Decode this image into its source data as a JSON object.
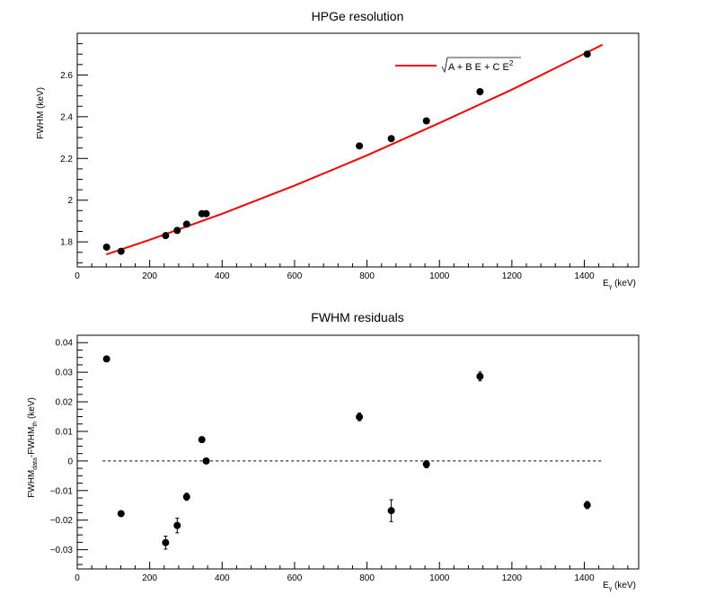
{
  "chart_data": [
    {
      "type": "scatter",
      "title": "HPGe resolution",
      "xlabel": "E",
      "xlabel_sub": "γ",
      "xlabel_unit": " (keV)",
      "ylabel": "FWHM (keV)",
      "xlim": [
        0,
        1550
      ],
      "ylim": [
        1.68,
        2.8
      ],
      "x_ticks": [
        0,
        200,
        400,
        600,
        800,
        1000,
        1200,
        1400
      ],
      "x_tick_labels": [
        "0",
        "200",
        "400",
        "600",
        "800",
        "1000",
        "1200",
        "1400"
      ],
      "y_ticks": [
        1.8,
        2.0,
        2.2,
        2.4,
        2.6
      ],
      "y_tick_labels": [
        "1.8",
        "2",
        "2.2",
        "2.4",
        "2.6"
      ],
      "legend": {
        "label": "A + B E + C E",
        "superscript": "2",
        "placement": "top-right"
      },
      "series": [
        {
          "kind": "points",
          "color": "#000000",
          "x": [
            81,
            121,
            244,
            276,
            302,
            344,
            356,
            779,
            867,
            964,
            1112,
            1408
          ],
          "y": [
            1.775,
            1.755,
            1.83,
            1.855,
            1.885,
            1.935,
            1.935,
            2.26,
            2.295,
            2.38,
            2.52,
            2.7
          ]
        },
        {
          "kind": "fit",
          "color": "#ff0000",
          "x": [
            80,
            200,
            400,
            600,
            800,
            1000,
            1200,
            1450
          ],
          "y": [
            1.74,
            1.81,
            1.935,
            2.07,
            2.215,
            2.37,
            2.53,
            2.745
          ]
        }
      ]
    },
    {
      "type": "scatter",
      "title": "FWHM residuals",
      "xlabel": "E",
      "xlabel_sub": "γ",
      "xlabel_unit": " (keV)",
      "ylabel": "FWHM",
      "ylabel_sub1": "data",
      "ylabel_mid": "-FWHM",
      "ylabel_sub2": "th",
      "ylabel_unit": " (keV)",
      "xlim": [
        0,
        1550
      ],
      "ylim": [
        -0.0365,
        0.0425
      ],
      "x_ticks": [
        0,
        200,
        400,
        600,
        800,
        1000,
        1200,
        1400
      ],
      "x_tick_labels": [
        "0",
        "200",
        "400",
        "600",
        "800",
        "1000",
        "1200",
        "1400"
      ],
      "y_ticks": [
        -0.03,
        -0.02,
        -0.01,
        0,
        0.01,
        0.02,
        0.03,
        0.04
      ],
      "y_tick_labels": [
        "−0.03",
        "−0.02",
        "−0.01",
        "0",
        "0.01",
        "0.02",
        "0.03",
        "0.04"
      ],
      "zero_line": {
        "y": 0,
        "style": "dashed",
        "x_range": [
          70,
          1450
        ]
      },
      "series": [
        {
          "kind": "points",
          "color": "#000000",
          "x": [
            81,
            121,
            244,
            276,
            302,
            344,
            356,
            779,
            867,
            964,
            1112,
            1408
          ],
          "y": [
            0.0345,
            -0.0178,
            -0.0276,
            -0.0218,
            -0.0121,
            0.0072,
            0.0,
            0.0149,
            -0.0168,
            -0.0011,
            0.0286,
            -0.0149
          ],
          "yerr": [
            0.0005,
            0.0005,
            0.0022,
            0.0025,
            0.0012,
            0.0005,
            0.0005,
            0.0013,
            0.0037,
            0.0012,
            0.0015,
            0.0012
          ]
        }
      ]
    }
  ]
}
